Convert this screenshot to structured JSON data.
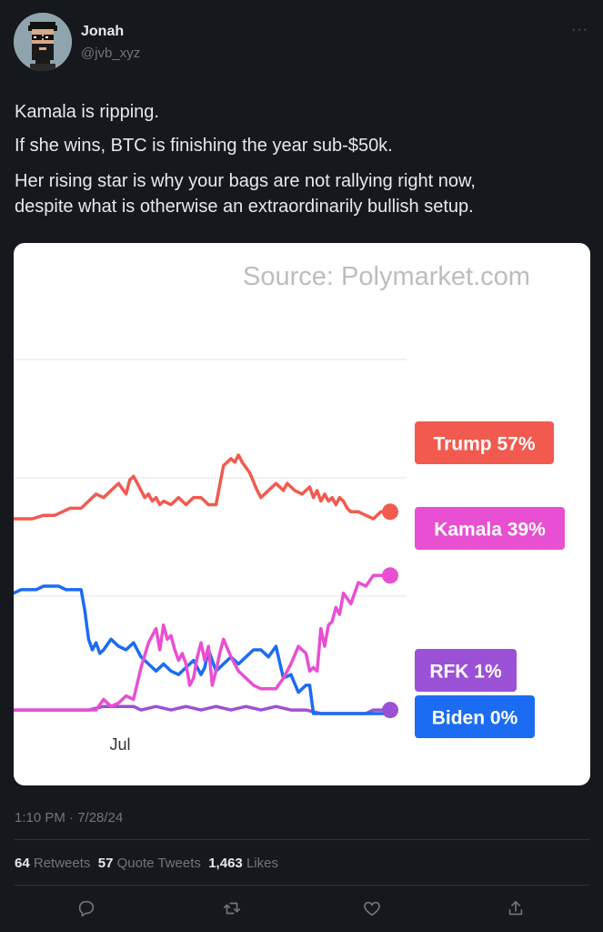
{
  "user": {
    "name": "Jonah",
    "handle": "@jvb_xyz"
  },
  "tweet": {
    "lines": [
      "Kamala is ripping.",
      "If she wins, BTC is finishing the year sub-$50k.",
      "Her rising star is why your bags are not rallying right now,",
      "despite what is otherwise an extraordinarily bullish setup."
    ],
    "timestamp": "1:10 PM · 7/28/24"
  },
  "stats": {
    "retweets_count": "64",
    "retweets_label": "Retweets",
    "quotes_count": "57",
    "quotes_label": "Quote Tweets",
    "likes_count": "1,463",
    "likes_label": "Likes"
  },
  "actions": [
    "reply-icon",
    "retweet-icon",
    "like-icon",
    "share-icon"
  ],
  "chart_data": {
    "type": "line",
    "annotation": "Source: Polymarket.com",
    "x_tick_labels": [
      "Jul"
    ],
    "ylim": [
      0,
      100
    ],
    "grid": true,
    "legend": "right",
    "series": [
      {
        "name": "Trump 57%",
        "color": "#f25a4f",
        "x": [
          0,
          5,
          8,
          11,
          13,
          15,
          18,
          20,
          22,
          24,
          26,
          28,
          30,
          31,
          32,
          33,
          34,
          35,
          36,
          37,
          38,
          39,
          40,
          42,
          44,
          46,
          48,
          50,
          52,
          54,
          56,
          58,
          59,
          60,
          61,
          63,
          65,
          66,
          68,
          70,
          72,
          73,
          75,
          77,
          79,
          80,
          81,
          82,
          83,
          84,
          85,
          86,
          87,
          88,
          89,
          90,
          92,
          94,
          96,
          98,
          100
        ],
        "y": [
          55,
          55,
          56,
          56,
          57,
          58,
          58,
          60,
          62,
          61,
          63,
          65,
          62,
          66,
          67,
          65,
          63,
          61,
          62,
          60,
          61,
          59,
          60,
          59,
          61,
          59,
          61,
          61,
          59,
          59,
          70,
          72,
          71,
          73,
          71,
          68,
          63,
          61,
          63,
          65,
          63,
          65,
          63,
          62,
          64,
          61,
          63,
          60,
          62,
          60,
          61,
          59,
          61,
          60,
          58,
          57,
          57,
          56,
          55,
          57,
          57
        ]
      },
      {
        "name": "Kamala 39%",
        "color": "#e84fd2",
        "x": [
          0,
          10,
          20,
          22,
          24,
          26,
          28,
          30,
          32,
          34,
          36,
          37,
          38,
          39,
          40,
          41,
          42,
          43,
          44,
          45,
          46,
          47,
          48,
          49,
          50,
          51,
          52,
          53,
          54,
          55,
          56,
          58,
          60,
          62,
          64,
          66,
          68,
          70,
          72,
          74,
          76,
          78,
          79,
          80,
          81,
          82,
          83,
          84,
          85,
          86,
          87,
          88,
          90,
          92,
          94,
          96,
          98,
          100
        ],
        "y": [
          1,
          1,
          1,
          1,
          4,
          2,
          3,
          5,
          4,
          13,
          20,
          22,
          24,
          18,
          25,
          21,
          22,
          18,
          15,
          17,
          14,
          8,
          10,
          16,
          20,
          15,
          19,
          8,
          12,
          17,
          21,
          16,
          12,
          10,
          8,
          7,
          7,
          7,
          10,
          14,
          19,
          17,
          12,
          13,
          12,
          24,
          19,
          25,
          26,
          30,
          28,
          34,
          31,
          37,
          36,
          39,
          39,
          39
        ]
      },
      {
        "name": "Biden 0%",
        "color": "#1b6cf2",
        "x": [
          0,
          2,
          4,
          6,
          8,
          10,
          12,
          14,
          16,
          18,
          19,
          20,
          21,
          22,
          23,
          24,
          26,
          28,
          30,
          32,
          34,
          36,
          38,
          40,
          42,
          44,
          46,
          48,
          50,
          51,
          52,
          54,
          56,
          58,
          60,
          62,
          64,
          66,
          68,
          70,
          72,
          74,
          76,
          78,
          79,
          80,
          82,
          84,
          86,
          88,
          90,
          92,
          94,
          96,
          98,
          100
        ],
        "y": [
          34,
          35,
          35,
          35,
          36,
          36,
          36,
          35,
          35,
          35,
          29,
          21,
          18,
          20,
          17,
          18,
          21,
          19,
          18,
          20,
          16,
          14,
          12,
          14,
          12,
          11,
          13,
          15,
          11,
          13,
          18,
          12,
          14,
          16,
          14,
          16,
          18,
          18,
          16,
          19,
          10,
          11,
          6,
          8,
          8,
          0,
          0,
          0,
          0,
          0,
          0,
          0,
          0,
          0,
          0,
          0
        ]
      },
      {
        "name": "RFK 1%",
        "color": "#9b51d6",
        "x": [
          0,
          10,
          20,
          24,
          28,
          32,
          34,
          38,
          42,
          46,
          50,
          54,
          58,
          62,
          66,
          70,
          74,
          78,
          82,
          86,
          90,
          94,
          96,
          98,
          100
        ],
        "y": [
          1,
          1,
          1,
          2,
          2,
          2,
          1,
          2,
          1,
          2,
          1,
          2,
          1,
          2,
          1,
          2,
          1,
          1,
          0,
          0,
          0,
          0,
          1,
          1,
          1
        ]
      }
    ]
  },
  "colors": {
    "background": "#15181c",
    "text": "#e7e9ea",
    "muted": "#71767b"
  }
}
